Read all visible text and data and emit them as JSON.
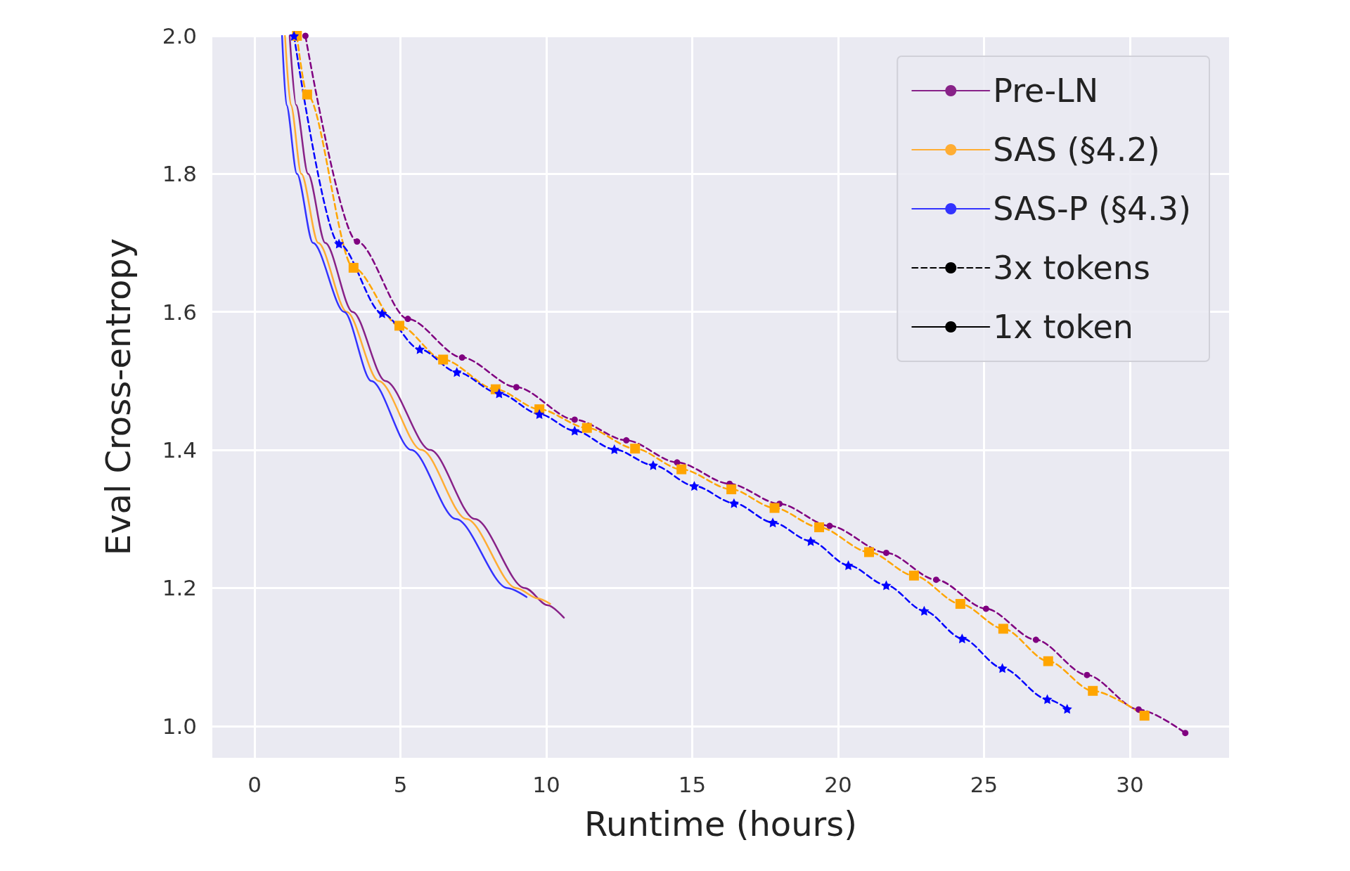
{
  "chart_data": {
    "type": "line",
    "xlabel": "Runtime (hours)",
    "ylabel": "Eval Cross-entropy",
    "xlim": [
      -1.45,
      33.4
    ],
    "ylim": [
      0.954,
      2.0
    ],
    "xticks": [
      0,
      5,
      10,
      15,
      20,
      25,
      30
    ],
    "yticks": [
      {
        "value": 1.0,
        "label": "1.0"
      },
      {
        "value": 1.2,
        "label": "1.2"
      },
      {
        "value": 1.4,
        "label": "1.4"
      },
      {
        "value": 1.6,
        "label": "1.6"
      },
      {
        "value": 1.8,
        "label": "1.8"
      },
      {
        "value": 2.0,
        "label": "2.0"
      }
    ],
    "grid": true,
    "legend": "top right",
    "series": [
      {
        "name": "Pre-LN",
        "color": "#882288",
        "line_style": "solid",
        "marker": "none",
        "x": [
          1.2,
          1.42,
          1.83,
          2.42,
          3.36,
          4.48,
          6.02,
          7.55,
          9.26,
          10.05,
          10.6
        ],
        "values": [
          2.0,
          1.9,
          1.8,
          1.7,
          1.6,
          1.5,
          1.4,
          1.3,
          1.2,
          1.175,
          1.157
        ]
      },
      {
        "name": "SAS (§4.2)",
        "color": "#ffad33",
        "line_style": "solid",
        "marker": "none",
        "x": [
          1.04,
          1.24,
          1.6,
          2.18,
          3.16,
          4.25,
          5.72,
          7.26,
          8.97,
          9.7,
          10.13
        ],
        "values": [
          2.0,
          1.9,
          1.8,
          1.7,
          1.6,
          1.5,
          1.4,
          1.3,
          1.2,
          1.185,
          1.177
        ]
      },
      {
        "name": "SAS-P (§4.3)",
        "color": "#3333ff",
        "line_style": "solid",
        "marker": "none",
        "x": [
          0.94,
          1.09,
          1.45,
          2.0,
          3.07,
          4.0,
          5.37,
          6.9,
          8.67,
          9.32
        ],
        "values": [
          2.0,
          1.9,
          1.8,
          1.7,
          1.6,
          1.5,
          1.4,
          1.3,
          1.2,
          1.187
        ]
      },
      {
        "name": "3x tokens",
        "color": "#000000",
        "line_style": "dashed",
        "marker": "circle"
      },
      {
        "name": "1x token",
        "color": "#000000",
        "line_style": "solid",
        "marker": "none"
      },
      {
        "color": "#800080",
        "line_style": "dashed",
        "marker": "circle",
        "x": [
          1.74,
          3.51,
          5.25,
          7.11,
          8.97,
          10.97,
          12.74,
          14.48,
          16.28,
          17.99,
          19.71,
          21.65,
          23.36,
          25.07,
          26.78,
          28.53,
          30.3,
          31.9
        ],
        "values": [
          2.0,
          1.702,
          1.59,
          1.534,
          1.491,
          1.444,
          1.414,
          1.382,
          1.351,
          1.322,
          1.29,
          1.251,
          1.212,
          1.17,
          1.125,
          1.074,
          1.024,
          0.99
        ]
      },
      {
        "color": "#ffa500",
        "line_style": "dashed",
        "marker": "square",
        "x": [
          1.45,
          1.8,
          3.39,
          4.96,
          6.46,
          8.26,
          9.76,
          11.39,
          13.04,
          14.63,
          16.34,
          17.82,
          19.35,
          21.06,
          22.6,
          24.19,
          25.66,
          27.2,
          28.73,
          30.5
        ],
        "values": [
          2.0,
          1.915,
          1.664,
          1.58,
          1.531,
          1.488,
          1.459,
          1.432,
          1.402,
          1.372,
          1.343,
          1.316,
          1.288,
          1.252,
          1.218,
          1.177,
          1.141,
          1.094,
          1.051,
          1.015
        ]
      },
      {
        "color": "#0000ff",
        "line_style": "dashed",
        "marker": "star",
        "x": [
          1.35,
          2.89,
          4.37,
          5.66,
          6.93,
          8.38,
          9.76,
          10.97,
          12.33,
          13.66,
          15.07,
          16.43,
          17.76,
          19.06,
          20.35,
          21.65,
          22.95,
          24.25,
          25.63,
          27.17,
          27.85
        ],
        "values": [
          2.0,
          1.699,
          1.598,
          1.546,
          1.513,
          1.482,
          1.452,
          1.428,
          1.401,
          1.378,
          1.348,
          1.323,
          1.295,
          1.268,
          1.233,
          1.204,
          1.167,
          1.127,
          1.084,
          1.039,
          1.025
        ]
      }
    ]
  }
}
